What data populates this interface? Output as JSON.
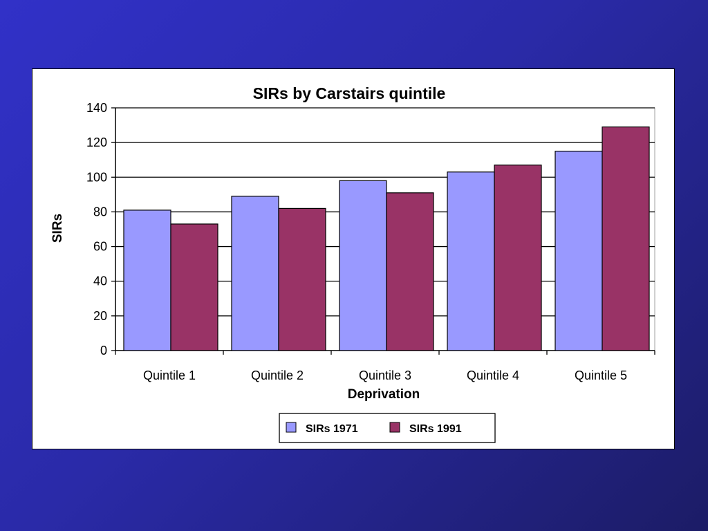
{
  "chart_data": {
    "type": "bar",
    "title": "SIRs by Carstairs quintile",
    "xlabel": "Deprivation",
    "ylabel": "SIRs",
    "categories": [
      "Quintile 1",
      "Quintile 2",
      "Quintile 3",
      "Quintile 4",
      "Quintile 5"
    ],
    "series": [
      {
        "name": "SIRs 1971",
        "values": [
          81,
          89,
          98,
          103,
          115
        ],
        "color": "#9999ff"
      },
      {
        "name": "SIRs 1991",
        "values": [
          73,
          82,
          91,
          107,
          129
        ],
        "color": "#993366"
      }
    ],
    "ylim": [
      0,
      140
    ],
    "yticks": [
      "0",
      "20",
      "40",
      "60",
      "80",
      "100",
      "120",
      "140"
    ],
    "grid": true,
    "legend_position": "bottom"
  },
  "colors": {
    "background_start": "#3131c8",
    "background_end": "#1c1c66",
    "panel": "#ffffff"
  }
}
